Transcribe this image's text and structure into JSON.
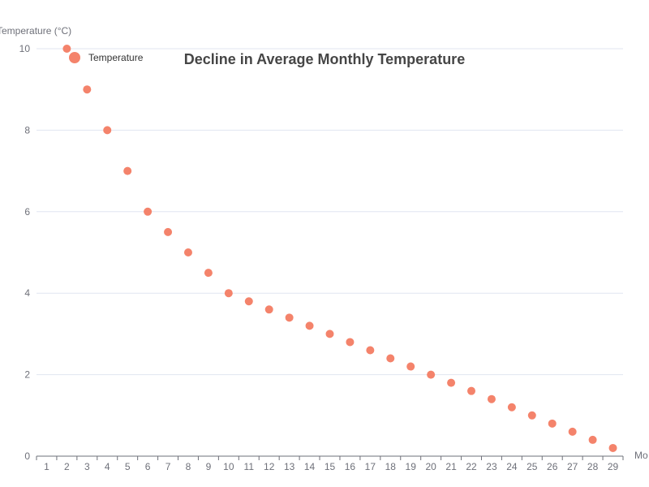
{
  "chart_data": {
    "type": "scatter",
    "title": "Decline in Average Monthly Temperature",
    "xlabel": "Mo",
    "ylabel": "Temperature (°C)",
    "x_categories": [
      1,
      2,
      3,
      4,
      5,
      6,
      7,
      8,
      9,
      10,
      11,
      12,
      13,
      14,
      15,
      16,
      17,
      18,
      19,
      20,
      21,
      22,
      23,
      24,
      25,
      26,
      27,
      28,
      29
    ],
    "ylim": [
      0,
      10
    ],
    "yticks": [
      0,
      2,
      4,
      6,
      8,
      10
    ],
    "grid": true,
    "legend_position": "top-left",
    "series": [
      {
        "name": "Temperature",
        "color": "#f4836b",
        "x": [
          2,
          3,
          4,
          5,
          6,
          7,
          8,
          9,
          10,
          11,
          12,
          13,
          14,
          15,
          16,
          17,
          18,
          19,
          20,
          21,
          22,
          23,
          24,
          25,
          26,
          27,
          28,
          29
        ],
        "y": [
          10,
          9,
          8,
          7,
          6,
          5.5,
          5,
          4.5,
          4,
          3.8,
          3.6,
          3.4,
          3.2,
          3,
          2.8,
          2.6,
          2.4,
          2.2,
          2,
          1.8,
          1.6,
          1.4,
          1.2,
          1,
          0.8,
          0.6,
          0.4,
          0.2
        ]
      }
    ]
  }
}
